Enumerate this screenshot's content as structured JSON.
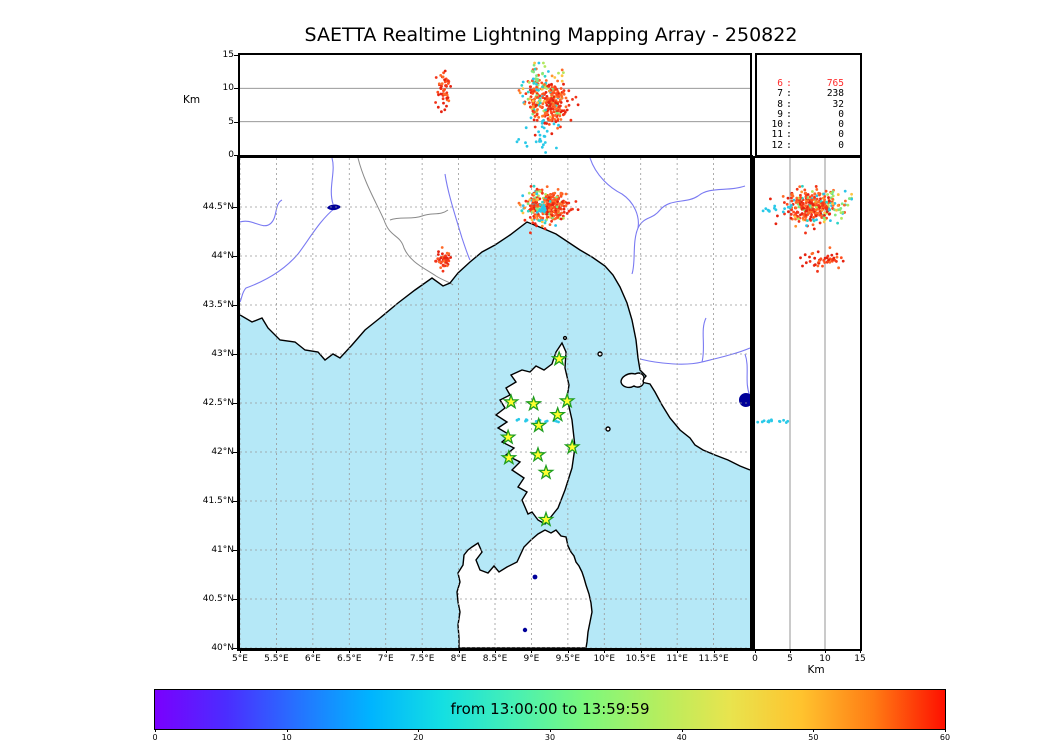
{
  "title": "SAETTA Realtime Lightning Mapping Array - 250822",
  "altitude_panel": {
    "ylabel": "Km",
    "ytick_values": [
      0,
      5,
      10,
      15
    ],
    "ytick_labels": [
      "0",
      "5",
      "10",
      "15"
    ],
    "ymax_km": 15,
    "gridlines_km": [
      5,
      10
    ]
  },
  "station_histogram": {
    "rows": [
      {
        "stations": "6",
        "count": "765",
        "highlighted": true
      },
      {
        "stations": "7",
        "count": "238",
        "highlighted": false
      },
      {
        "stations": "8",
        "count": "32",
        "highlighted": false
      },
      {
        "stations": "9",
        "count": "0",
        "highlighted": false
      },
      {
        "stations": "10",
        "count": "0",
        "highlighted": false
      },
      {
        "stations": "11",
        "count": "0",
        "highlighted": false
      },
      {
        "stations": "12",
        "count": "0",
        "highlighted": false
      }
    ]
  },
  "map": {
    "lon_range": [
      5,
      12
    ],
    "lat_range": [
      40,
      45
    ],
    "lon_tick_values": [
      5,
      5.5,
      6,
      6.5,
      7,
      7.5,
      8,
      8.5,
      9,
      9.5,
      10,
      10.5,
      11,
      11.5
    ],
    "lon_tick_labels": [
      "5°E",
      "5.5°E",
      "6°E",
      "6.5°E",
      "7°E",
      "7.5°E",
      "8°E",
      "8.5°E",
      "9°E",
      "9.5°E",
      "10°E",
      "10.5°E",
      "11°E",
      "11.5°E"
    ],
    "lat_tick_values": [
      40,
      40.5,
      41,
      41.5,
      42,
      42.5,
      43,
      43.5,
      44,
      44.5
    ],
    "lat_tick_labels": [
      "40°N",
      "40.5°N",
      "41°N",
      "41.5°N",
      "42°N",
      "42.5°N",
      "43°N",
      "43.5°N",
      "44°N",
      "44.5°N"
    ]
  },
  "right_panel": {
    "xlabel": "Km",
    "xtick_values": [
      0,
      5,
      10,
      15
    ],
    "xtick_labels": [
      "0",
      "5",
      "10",
      "15"
    ],
    "xmax_km": 15,
    "gridlines_km": [
      5,
      10
    ]
  },
  "colorbar": {
    "label": "from 13:00:00 to 13:59:59",
    "tick_values": [
      0,
      10,
      20,
      30,
      40,
      50,
      60
    ],
    "tick_labels": [
      "0",
      "10",
      "20",
      "30",
      "40",
      "50",
      "60"
    ],
    "range_minutes": [
      0,
      60
    ],
    "gradient": [
      "#7a00fe",
      "#4b2dff",
      "#2573ff",
      "#00b4ff",
      "#14dfe2",
      "#47f0b4",
      "#7df87d",
      "#b4ee5f",
      "#e8e44e",
      "#ffc32e",
      "#ff7c14",
      "#fe1000"
    ]
  },
  "colors": {
    "sea": "#b5e8f7",
    "land": "#ffffff",
    "coast": "#000000",
    "river": "#7a7af2",
    "lake": "#00009a",
    "country_border": "#8a8a8a",
    "map_grid": "#999999",
    "panel_grid": "#8a8a8a",
    "station_fill": "#ffff2e",
    "station_edge": "#1f9e1f",
    "highlight_count": "#ff2a2a",
    "point_reds": [
      "#f23318",
      "#ff4d1e",
      "#e6220f",
      "#ff6a28"
    ],
    "point_oranges": [
      "#ff9230",
      "#ffc342"
    ],
    "point_greens": [
      "#82e87e",
      "#b2e85e"
    ],
    "point_cyans": [
      "#2ed4c6",
      "#2cc4ea"
    ],
    "track_cyan": "#29c9e8"
  },
  "chart_data": {
    "type": "scatter",
    "title": "SAETTA Realtime Lightning Mapping Array - 250822",
    "time_window": "from 13:00:00 to 13:59:59",
    "color_encoding": "minutes after 13:00, rainbow colormap 0-60, most sources late (red)",
    "panels": {
      "top": {
        "x": "longitude 5-12 °E",
        "y": "altitude 0-15 km",
        "grid_km": [
          5,
          10
        ]
      },
      "main": {
        "x": "longitude 5-12 °E",
        "y": "latitude 40-45 °N",
        "grid_deg": 0.5
      },
      "right": {
        "x": "altitude 0-15 km",
        "y": "latitude 40-45 °N",
        "grid_km": [
          5,
          10
        ]
      }
    },
    "station_count_histogram": {
      "stations": [
        6,
        7,
        8,
        9,
        10,
        11,
        12
      ],
      "sources": [
        765,
        238,
        32,
        0,
        0,
        0,
        0
      ]
    },
    "stations_lonlat": [
      [
        9.38,
        42.95
      ],
      [
        8.72,
        42.51
      ],
      [
        9.03,
        42.49
      ],
      [
        9.49,
        42.52
      ],
      [
        9.36,
        42.38
      ],
      [
        9.1,
        42.27
      ],
      [
        8.68,
        42.15
      ],
      [
        9.56,
        42.05
      ],
      [
        8.69,
        41.94
      ],
      [
        9.09,
        41.97
      ],
      [
        9.2,
        41.79
      ],
      [
        9.2,
        41.31
      ]
    ],
    "clusters": [
      {
        "id": "main-storm-west",
        "lon": 9.06,
        "lat": 44.52,
        "lon_sigma": 0.085,
        "lat_sigma": 0.09,
        "alt_mean_km": 8.8,
        "alt_sigma_km": 2.3,
        "alt_range_km": [
          2.2,
          13.8
        ],
        "n": 150,
        "palette": "mixed"
      },
      {
        "id": "main-storm-east",
        "lon": 9.31,
        "lat": 44.5,
        "lon_sigma": 0.09,
        "lat_sigma": 0.075,
        "alt_mean_km": 8.0,
        "alt_sigma_km": 1.9,
        "alt_range_km": [
          3.2,
          13.2
        ],
        "n": 185,
        "palette": "warm"
      },
      {
        "id": "secondary-storm",
        "lon": 7.8,
        "lat": 43.96,
        "lon_sigma": 0.05,
        "lat_sigma": 0.04,
        "alt_mean_km": 9.5,
        "alt_sigma_km": 1.5,
        "alt_range_km": [
          6.5,
          12.6
        ],
        "n": 46,
        "palette": "red"
      },
      {
        "id": "updraft-trail",
        "lon": 9.15,
        "lat": 44.48,
        "lon_sigma": 0.02,
        "lat_sigma": 0.02,
        "alt_mean_km": 3.0,
        "alt_sigma_km": 1.4,
        "alt_range_km": [
          0.8,
          5.4
        ],
        "n": 13,
        "palette": "cyan"
      },
      {
        "id": "low-level-track",
        "lon": 9.08,
        "lat": 42.32,
        "lon_sigma": 0.16,
        "lat_sigma": 0.008,
        "alt_mean_km": 2.2,
        "alt_sigma_km": 1.4,
        "alt_range_km": [
          0.3,
          4.8
        ],
        "n": 13,
        "palette": "cyan"
      }
    ]
  }
}
